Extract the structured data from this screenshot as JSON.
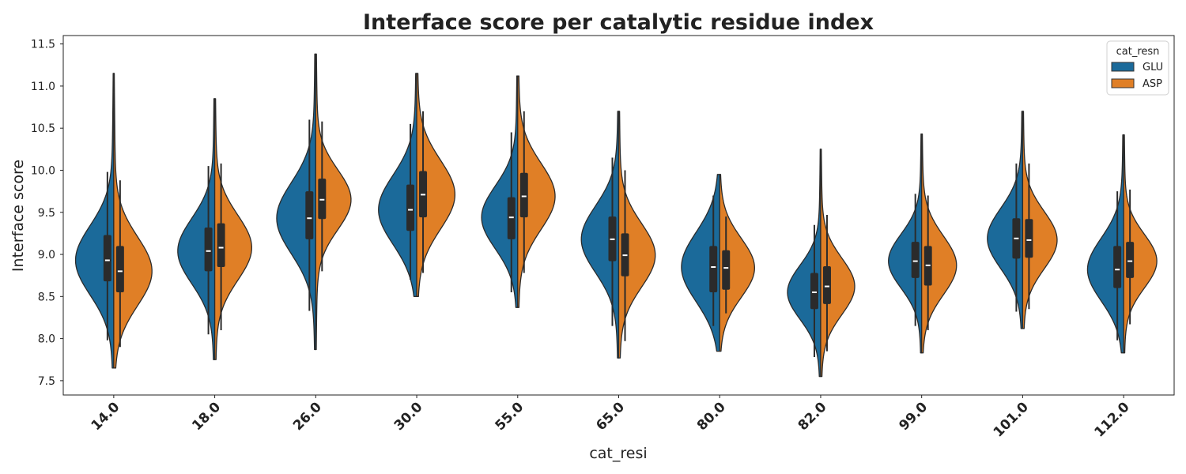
{
  "chart_data": {
    "type": "violin",
    "split": true,
    "title": "Interface score per catalytic residue index",
    "xlabel": "cat_resi",
    "ylabel": "Interface score",
    "ylim": [
      7.33,
      11.6
    ],
    "yticks": [
      "7.5",
      "8.0",
      "8.5",
      "9.0",
      "9.5",
      "10.0",
      "10.5",
      "11.0",
      "11.5"
    ],
    "categories": [
      "14.0",
      "18.0",
      "26.0",
      "30.0",
      "55.0",
      "65.0",
      "80.0",
      "82.0",
      "99.0",
      "101.0",
      "112.0"
    ],
    "grid": false,
    "legend": {
      "title": "cat_resn",
      "placement": "top-right"
    },
    "series": [
      {
        "name": "GLU",
        "color": "#1b6a9a",
        "median": [
          8.93,
          9.04,
          9.43,
          9.53,
          9.44,
          9.18,
          8.85,
          8.55,
          8.92,
          9.19,
          8.82
        ],
        "q1": [
          8.68,
          8.8,
          9.18,
          9.28,
          9.18,
          8.92,
          8.55,
          8.35,
          8.72,
          8.95,
          8.6
        ],
        "q3": [
          9.23,
          9.32,
          9.75,
          9.83,
          9.68,
          9.45,
          9.1,
          8.78,
          9.15,
          9.43,
          9.1
        ],
        "min": [
          7.98,
          8.05,
          8.33,
          8.7,
          8.55,
          8.15,
          8.15,
          7.78,
          8.15,
          8.32,
          7.98
        ],
        "max": [
          9.98,
          10.05,
          10.6,
          10.55,
          10.45,
          10.15,
          9.7,
          9.35,
          9.72,
          10.08,
          9.75
        ],
        "kde_min": [
          7.65,
          7.75,
          7.87,
          8.5,
          8.37,
          7.77,
          7.85,
          7.55,
          7.83,
          8.12,
          7.83
        ],
        "kde_max": [
          11.15,
          10.85,
          11.38,
          11.15,
          11.12,
          10.7,
          9.95,
          10.25,
          10.43,
          10.7,
          10.42
        ]
      },
      {
        "name": "ASP",
        "color": "#e07f26",
        "median": [
          8.8,
          9.08,
          9.65,
          9.71,
          9.69,
          8.99,
          8.84,
          8.62,
          8.87,
          9.17,
          8.92
        ],
        "q1": [
          8.55,
          8.85,
          9.42,
          9.44,
          9.44,
          8.74,
          8.58,
          8.41,
          8.63,
          8.96,
          8.72
        ],
        "q3": [
          9.1,
          9.37,
          9.9,
          9.99,
          9.97,
          9.25,
          9.05,
          8.86,
          9.1,
          9.42,
          9.15
        ],
        "min": [
          7.9,
          8.1,
          8.8,
          8.78,
          8.78,
          7.97,
          8.3,
          7.85,
          8.1,
          8.35,
          8.17
        ],
        "max": [
          9.88,
          10.08,
          10.58,
          10.7,
          10.7,
          10.0,
          9.45,
          9.47,
          9.7,
          10.08,
          9.77
        ],
        "kde_min": [
          7.65,
          7.75,
          7.87,
          8.5,
          8.37,
          7.77,
          7.85,
          7.55,
          7.83,
          8.12,
          7.83
        ],
        "kde_max": [
          11.15,
          10.85,
          11.38,
          11.15,
          11.12,
          10.7,
          9.95,
          10.25,
          10.43,
          10.7,
          10.42
        ]
      }
    ]
  }
}
